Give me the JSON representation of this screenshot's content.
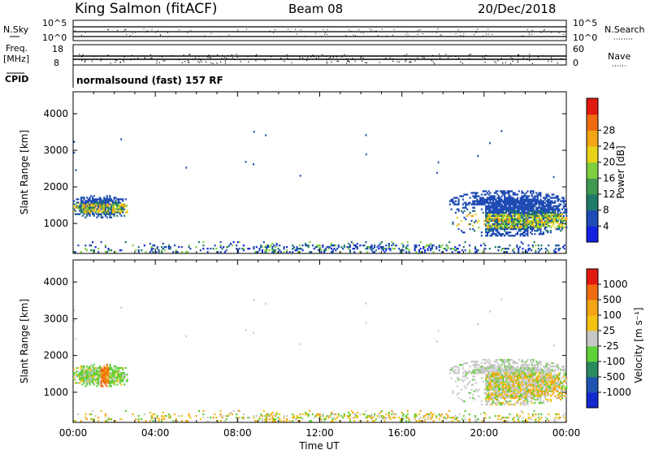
{
  "header": {
    "station": "King Salmon (fitACF)",
    "beam": "Beam 08",
    "date": "20/Dec/2018"
  },
  "strips": {
    "nsky_label": "N.Sky",
    "freq_label_1": "Freq.",
    "freq_label_2": "[MHz]",
    "cpid_label": "CPID",
    "nsearch_label": "N.Search",
    "nave_label": "Nave",
    "nsky_ticks": [
      "10^5",
      "10^0"
    ],
    "nsearch_ticks": [
      "10^5",
      "10^0"
    ],
    "freq_ticks": [
      "18",
      "8"
    ],
    "nave_ticks": [
      "60",
      "0"
    ],
    "cpid_text": "normalsound (fast) 157 RF"
  },
  "chart_data": [
    {
      "type": "heatmap",
      "name": "power-panel",
      "xlabel": "",
      "ylabel": "Slant Range [km]",
      "xlim": [
        0,
        24
      ],
      "ylim": [
        180,
        4600
      ],
      "yticks": [
        "1000",
        "2000",
        "3000",
        "4000"
      ],
      "colorbar": {
        "label": "Power [dB]",
        "ticks": [
          "4",
          "8",
          "12",
          "16",
          "20",
          "24",
          "28"
        ],
        "colors": [
          "#1420e0",
          "#1f4bb4",
          "#1f7a6a",
          "#3f9a4f",
          "#7dcf3e",
          "#e8d21a",
          "#f2a515",
          "#ef6a10",
          "#e01a10"
        ]
      },
      "echo_regions": [
        {
          "t_start": 0.0,
          "t_end": 2.6,
          "r_min": 1100,
          "r_max": 1750,
          "level": "mixed blue/green/yellow"
        },
        {
          "t_start": 18.3,
          "t_end": 24.0,
          "r_min": 600,
          "r_max": 1900,
          "level": "blue edge, green/yellow core"
        },
        {
          "t_start": 0.0,
          "t_end": 24.0,
          "r_min": 200,
          "r_max": 500,
          "level": "scattered near-range echoes"
        }
      ]
    },
    {
      "type": "heatmap",
      "name": "velocity-panel",
      "xlabel": "Time UT",
      "ylabel": "Slant Range [km]",
      "xlim": [
        0,
        24
      ],
      "ylim": [
        180,
        4600
      ],
      "xticks": [
        "00:00",
        "04:00",
        "08:00",
        "12:00",
        "16:00",
        "20:00",
        "00:00"
      ],
      "yticks": [
        "1000",
        "2000",
        "3000",
        "4000"
      ],
      "colorbar": {
        "label": "Velocity [m s⁻¹]",
        "ticks": [
          "1000",
          "500",
          "100",
          "25",
          "-25",
          "-100",
          "-500",
          "-1000"
        ],
        "colors": [
          "#1428d0",
          "#1f54b0",
          "#2a8a60",
          "#5fd038",
          "#c8c8c8",
          "#f2c215",
          "#f2a515",
          "#ef6a10",
          "#e01a10"
        ]
      },
      "echo_regions": [
        {
          "t_start": 0.0,
          "t_end": 2.6,
          "r_min": 1100,
          "r_max": 1750,
          "level": "green with orange band"
        },
        {
          "t_start": 18.3,
          "t_end": 24.0,
          "r_min": 600,
          "r_max": 1900,
          "level": "grey (ground scatter) with orange/green"
        },
        {
          "t_start": 0.0,
          "t_end": 24.0,
          "r_min": 200,
          "r_max": 500,
          "level": "scattered near-range echoes"
        }
      ]
    }
  ]
}
